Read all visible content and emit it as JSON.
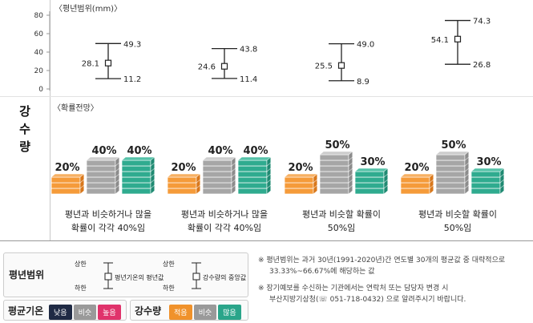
{
  "chart_data": {
    "type": "errorbar",
    "subtitle": "〈평년범위(mm)〉",
    "ylim": [
      0,
      80
    ],
    "yticks": [
      "0",
      "20",
      "40",
      "60",
      "80"
    ],
    "months": [
      {
        "mean": 28.1,
        "low": 11.2,
        "high": 49.3,
        "mean_label": "28.1",
        "low_label": "11.2",
        "high_label": "49.3"
      },
      {
        "mean": 24.6,
        "low": 11.4,
        "high": 43.8,
        "mean_label": "24.6",
        "low_label": "11.4",
        "high_label": "43.8"
      },
      {
        "mean": 25.5,
        "low": 8.9,
        "high": 49.0,
        "mean_label": "25.5",
        "low_label": "8.9",
        "high_label": "49.0"
      },
      {
        "mean": 54.1,
        "low": 26.8,
        "high": 74.3,
        "mean_label": "54.1",
        "low_label": "26.8",
        "high_label": "74.3"
      }
    ],
    "probability_title": "〈확률전망〉",
    "probabilities": [
      {
        "below": 20,
        "normal": 40,
        "above": 40,
        "below_label": "20%",
        "normal_label": "40%",
        "above_label": "40%",
        "desc1": "평년과 비슷하거나 많을",
        "desc2": "확률이 각각 40%임"
      },
      {
        "below": 20,
        "normal": 40,
        "above": 40,
        "below_label": "20%",
        "normal_label": "40%",
        "above_label": "40%",
        "desc1": "평년과 비슷하거나 많을",
        "desc2": "확률이 각각 40%임"
      },
      {
        "below": 20,
        "normal": 50,
        "above": 30,
        "below_label": "20%",
        "normal_label": "50%",
        "above_label": "30%",
        "desc1": "평년과 비슷할 확률이",
        "desc2": "50%임"
      },
      {
        "below": 20,
        "normal": 50,
        "above": 30,
        "below_label": "20%",
        "normal_label": "50%",
        "above_label": "30%",
        "desc1": "평년과 비슷할 확률이",
        "desc2": "50%임"
      }
    ]
  },
  "row_label": [
    "강",
    "수",
    "량"
  ],
  "legend": {
    "range_title": "평년범위",
    "upper": "상한",
    "lower": "하한",
    "mean_text": "평년기온의 평년값",
    "median_text": "강수량의 중앙값",
    "temp_title": "평균기온",
    "temp_chips": [
      "낮음",
      "비슷",
      "높음"
    ],
    "precip_title": "강수량",
    "precip_chips": [
      "적음",
      "비슷",
      "많음"
    ]
  },
  "colors": {
    "low_orange": "#f0922b",
    "normal_gray": "#9a9a9a",
    "high_teal": "#2aa58a",
    "temp_low": "#1f2a44",
    "temp_high": "#e0336b"
  },
  "notes": [
    "※  평년범위는 과거 30년(1991-2020년)간 연도별 30개의 평균값 중 대략적으로",
    "33.33%~66.67%에 해당하는 값",
    "※  장기예보를 수신하는 기관에서는 연락처 또는 담당자 변경 시",
    "부산지방기상청(☏ 051-718-0432) 으로 알려주시기 바랍니다."
  ]
}
